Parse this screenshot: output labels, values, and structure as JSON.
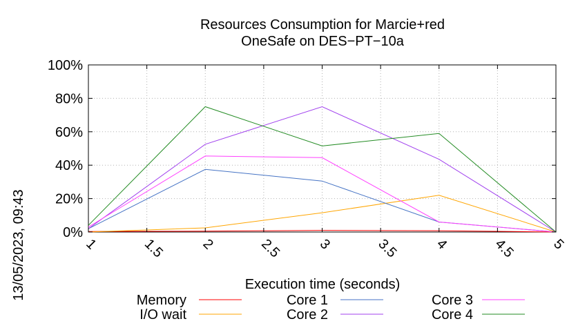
{
  "chart_data": {
    "type": "line",
    "title": [
      "Resources Consumption for Marcie+red",
      "OneSafe on DES−PT−10a"
    ],
    "xlabel": "Execution time (seconds)",
    "ylabel": "",
    "side_label": "13/05/2023, 09:43",
    "xlim": [
      1,
      5
    ],
    "ylim": [
      0,
      100
    ],
    "x_ticks": [
      1,
      1.5,
      2,
      2.5,
      3,
      3.5,
      4,
      4.5,
      5
    ],
    "x_tick_labels": [
      "1",
      "1.5",
      "2",
      "2.5",
      "3",
      "3.5",
      "4",
      "4.5",
      "5"
    ],
    "y_ticks": [
      0,
      20,
      40,
      60,
      80,
      100
    ],
    "y_tick_labels": [
      "0%",
      "20%",
      "40%",
      "60%",
      "80%",
      "100%"
    ],
    "grid": true,
    "legend_position": "bottom",
    "x": [
      1,
      2,
      3,
      4,
      5
    ],
    "series": [
      {
        "name": "Memory",
        "color": "#ff0000",
        "values": [
          0.3,
          0.5,
          1,
          0.8,
          0
        ]
      },
      {
        "name": "I/O wait",
        "color": "#ffa500",
        "values": [
          0,
          2.5,
          11.5,
          22,
          0
        ]
      },
      {
        "name": "Core 1",
        "color": "#4472c4",
        "values": [
          2,
          37.5,
          30.5,
          6,
          0
        ]
      },
      {
        "name": "Core 2",
        "color": "#a040ee",
        "values": [
          2,
          52.5,
          75,
          43.5,
          0
        ]
      },
      {
        "name": "Core 3",
        "color": "#ff40ff",
        "values": [
          3,
          45.5,
          44.5,
          6,
          0
        ]
      },
      {
        "name": "Core 4",
        "color": "#228b22",
        "values": [
          4,
          75,
          51.5,
          59,
          0
        ]
      }
    ]
  }
}
